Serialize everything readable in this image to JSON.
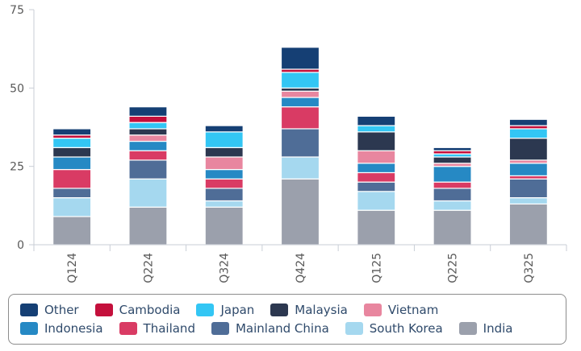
{
  "chart_data": {
    "type": "bar",
    "stacked": true,
    "title": "",
    "xlabel": "",
    "ylabel": "",
    "ylim": [
      0,
      75
    ],
    "yticks": [
      0,
      25,
      50,
      75
    ],
    "grid": false,
    "legend_position": "bottom",
    "categories": [
      "Q124",
      "Q224",
      "Q324",
      "Q424",
      "Q125",
      "Q225",
      "Q325"
    ],
    "series": [
      {
        "name": "India",
        "color": "#9ba0ac",
        "values": [
          9,
          12,
          12,
          21,
          11,
          11,
          13
        ]
      },
      {
        "name": "South Korea",
        "color": "#a5d8ef",
        "values": [
          6,
          9,
          2,
          7,
          6,
          3,
          2
        ]
      },
      {
        "name": "Mainland China",
        "color": "#4f6d97",
        "values": [
          3,
          6,
          4,
          9,
          3,
          4,
          6
        ]
      },
      {
        "name": "Thailand",
        "color": "#d93b64",
        "values": [
          6,
          3,
          3,
          7,
          3,
          2,
          1
        ]
      },
      {
        "name": "Indonesia",
        "color": "#2689c4",
        "values": [
          4,
          3,
          3,
          3,
          3,
          5,
          4
        ]
      },
      {
        "name": "Vietnam",
        "color": "#e8869f",
        "values": [
          0,
          2,
          4,
          2,
          4,
          1,
          1
        ]
      },
      {
        "name": "Malaysia",
        "color": "#2c3850",
        "values": [
          3,
          2,
          3,
          1,
          6,
          2,
          7
        ]
      },
      {
        "name": "Japan",
        "color": "#33c6f4",
        "values": [
          3,
          2,
          5,
          5,
          2,
          1,
          3
        ]
      },
      {
        "name": "Cambodia",
        "color": "#c4103c",
        "values": [
          1,
          2,
          0,
          1,
          0,
          1,
          1
        ]
      },
      {
        "name": "Other",
        "color": "#153f74",
        "values": [
          2,
          3,
          2,
          7,
          3,
          1,
          2
        ]
      }
    ],
    "legend_order": [
      [
        "Other",
        "Cambodia",
        "Japan",
        "Malaysia",
        "Vietnam"
      ],
      [
        "Indonesia",
        "Thailand",
        "Mainland China",
        "South Korea",
        "India"
      ]
    ]
  }
}
